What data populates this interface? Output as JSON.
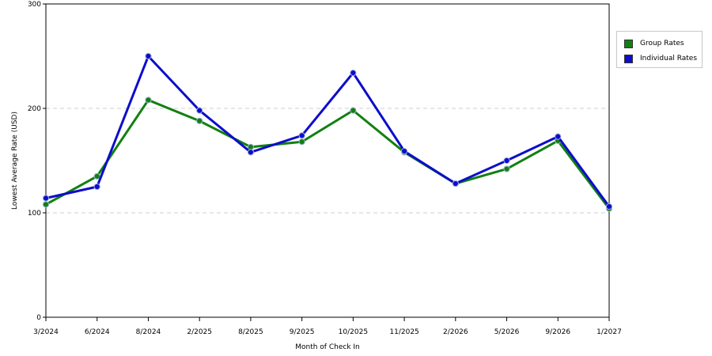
{
  "chart_data": {
    "type": "line",
    "categories": [
      "3/2024",
      "6/2024",
      "8/2024",
      "2/2025",
      "8/2025",
      "9/2025",
      "10/2025",
      "11/2025",
      "2/2026",
      "5/2026",
      "9/2026",
      "1/2027"
    ],
    "series": [
      {
        "name": "Group Rates",
        "color": "#118011",
        "values": [
          108,
          135,
          208,
          188,
          163,
          168,
          198,
          158,
          128,
          142,
          169,
          104
        ]
      },
      {
        "name": "Individual Rates",
        "color": "#0d0dcc",
        "values": [
          114,
          125,
          250,
          198,
          158,
          174,
          234,
          159,
          128,
          150,
          173,
          106
        ]
      }
    ],
    "xlabel": "Month of Check In",
    "ylabel": "Lowest Average Rate (USD)",
    "ylim": [
      0,
      300
    ],
    "yticks": [
      "0",
      "100",
      "200",
      "300"
    ],
    "grid": true,
    "legend_position": "top-right"
  }
}
